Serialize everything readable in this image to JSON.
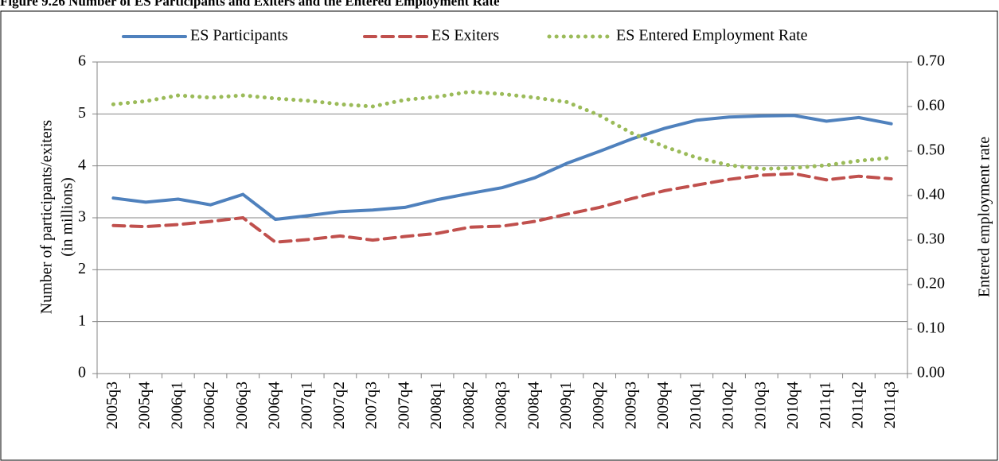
{
  "chart_data": {
    "type": "line",
    "title": "Figure 9.26 Number of ES Participants and Exiters and the Entered Employment Rate",
    "ylabel": [
      "Number of participants/exiters",
      "(in millions)"
    ],
    "y2label": "Entered employment rate",
    "categories": [
      "2005q3",
      "2005q4",
      "2006q1",
      "2006q2",
      "2006q3",
      "2006q4",
      "2007q1",
      "2007q2",
      "2007q3",
      "2007q4",
      "2008q1",
      "2008q2",
      "2008q3",
      "2008q4",
      "2009q1",
      "2009q2",
      "2009q3",
      "2009q4",
      "2010q1",
      "2010q2",
      "2010q3",
      "2010q4",
      "2011q1",
      "2011q2",
      "2011q3"
    ],
    "series": [
      {
        "name": "ES Participants",
        "color": "#4f81bd",
        "dash": "solid",
        "values": [
          3.38,
          3.3,
          3.36,
          3.25,
          3.45,
          2.97,
          3.04,
          3.12,
          3.15,
          3.2,
          3.35,
          3.47,
          3.58,
          3.77,
          4.05,
          4.28,
          4.52,
          4.72,
          4.88,
          4.94,
          4.96,
          4.97,
          4.86,
          4.93,
          4.81
        ]
      },
      {
        "name": "ES Exiters",
        "color": "#c0504d",
        "dash": "dash",
        "values": [
          2.85,
          2.83,
          2.87,
          2.93,
          3.0,
          2.53,
          2.58,
          2.65,
          2.57,
          2.64,
          2.7,
          2.82,
          2.84,
          2.93,
          3.07,
          3.2,
          3.37,
          3.52,
          3.63,
          3.74,
          3.82,
          3.85,
          3.73,
          3.8,
          3.75
        ]
      },
      {
        "name": "ES Entered Employment Rate",
        "color": "#9bbb59",
        "dash": "dot",
        "axis": "y2",
        "values": [
          0.605,
          0.612,
          0.625,
          0.62,
          0.625,
          0.618,
          0.613,
          0.605,
          0.6,
          0.615,
          0.622,
          0.633,
          0.628,
          0.62,
          0.61,
          0.58,
          0.54,
          0.51,
          0.485,
          0.468,
          0.46,
          0.462,
          0.468,
          0.478,
          0.485
        ]
      }
    ],
    "ylim": [
      0,
      6
    ],
    "yticks": [
      0,
      1,
      2,
      3,
      4,
      5,
      6
    ],
    "y2lim": [
      0,
      0.7
    ],
    "y2ticks": [
      {
        "value": 0,
        "label": "0.00"
      },
      {
        "value": 0.1,
        "label": "0.10"
      },
      {
        "value": 0.2,
        "label": "0.20"
      },
      {
        "value": 0.3,
        "label": "0.30"
      },
      {
        "value": 0.4,
        "label": "0.40"
      },
      {
        "value": 0.5,
        "label": "0.50"
      },
      {
        "value": 0.6,
        "label": "0.60"
      },
      {
        "value": 0.7,
        "label": "0.70"
      }
    ],
    "grid": true,
    "legend": "top"
  }
}
